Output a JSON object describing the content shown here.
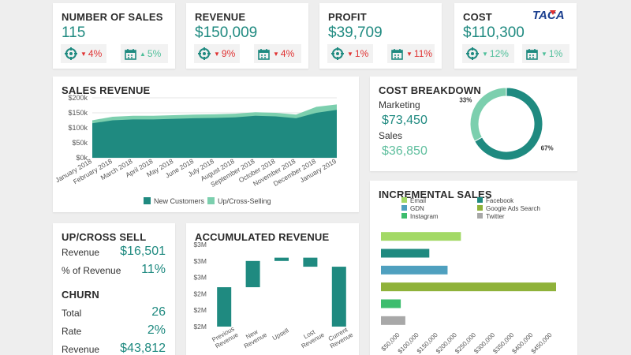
{
  "logo": {
    "text": "TACA",
    "colors": [
      "#1b3f8f",
      "#e03131"
    ]
  },
  "kpis": [
    {
      "title": "NUMBER OF SALES",
      "value": "115",
      "chip1": {
        "icon": "target-icon",
        "dir": "down",
        "pct": "4%"
      },
      "chip2": {
        "icon": "calendar-icon",
        "dir": "up",
        "pct": "5%"
      }
    },
    {
      "title": "REVENUE",
      "value": "$150,009",
      "chip1": {
        "icon": "target-icon",
        "dir": "down",
        "pct": "9%"
      },
      "chip2": {
        "icon": "calendar-icon",
        "dir": "down",
        "pct": "4%"
      }
    },
    {
      "title": "PROFIT",
      "value": "$39,709",
      "chip1": {
        "icon": "target-icon",
        "dir": "down",
        "pct": "1%"
      },
      "chip2": {
        "icon": "calendar-icon",
        "dir": "down",
        "pct": "11%"
      }
    },
    {
      "title": "COST",
      "value": "$110,300",
      "chip1": {
        "icon": "target-icon",
        "dir": "down",
        "pct": "12%",
        "good": true
      },
      "chip2": {
        "icon": "calendar-icon",
        "dir": "down",
        "pct": "1%",
        "good": true
      }
    }
  ],
  "sales_revenue": {
    "title": "SALES REVENUE",
    "chart_data": {
      "type": "area",
      "categories": [
        "January 2018",
        "February 2018",
        "March 2018",
        "April 2018",
        "May 2018",
        "June 2018",
        "July 2018",
        "August 2018",
        "September 2018",
        "October 2018",
        "November 2018",
        "December 2018",
        "January 2019"
      ],
      "series": [
        {
          "name": "New Customers",
          "values": [
            115,
            125,
            128,
            128,
            130,
            132,
            133,
            135,
            140,
            138,
            132,
            150,
            160
          ],
          "color": "#1f8a80"
        },
        {
          "name": "Up/Cross-Selling",
          "values": [
            10,
            12,
            12,
            12,
            12,
            12,
            12,
            12,
            12,
            12,
            12,
            20,
            18
          ],
          "color": "#7ccfae"
        }
      ],
      "stacked": true,
      "ylim": [
        0,
        200
      ],
      "yticks": [
        0,
        50,
        100,
        150,
        200
      ],
      "ytick_labels": [
        "$0k",
        "$50k",
        "$100k",
        "$150k",
        "$200k"
      ],
      "legend": "bottom"
    }
  },
  "cost_breakdown": {
    "title": "COST BREAKDOWN",
    "items": [
      {
        "label": "Marketing",
        "value": "$73,450",
        "color": "#1f8a80"
      },
      {
        "label": "Sales",
        "value": "$36,850",
        "color": "#7ccfae"
      }
    ],
    "chart_data": {
      "type": "pie",
      "labels": [
        "Marketing",
        "Sales"
      ],
      "values": [
        67,
        33
      ],
      "value_labels": [
        "67%",
        "33%"
      ],
      "colors": [
        "#1f8a80",
        "#7ccfae"
      ]
    }
  },
  "upcross": {
    "title": "UP/CROSS SELL",
    "rows": [
      {
        "label": "Revenue",
        "value": "$16,501"
      },
      {
        "label": "% of Revenue",
        "value": "11%"
      }
    ]
  },
  "churn": {
    "title": "CHURN",
    "rows": [
      {
        "label": "Total",
        "value": "26"
      },
      {
        "label": "Rate",
        "value": "2%"
      },
      {
        "label": "Revenue",
        "value": "$43,812"
      }
    ]
  },
  "accumulated": {
    "title": "ACCUMULATED REVENUE",
    "chart_data": {
      "type": "bar",
      "subtype": "waterfall",
      "categories": [
        "Previous Revenue",
        "New Revenue",
        "Upsell",
        "Lost Revenue",
        "Current Revenue"
      ],
      "starts": [
        2.0,
        2.48,
        2.8,
        2.84,
        2.0
      ],
      "ends": [
        2.48,
        2.8,
        2.84,
        2.73,
        2.73
      ],
      "color": "#1f8a80",
      "ylim": [
        2.0,
        3.0
      ],
      "yticks": [
        2.0,
        2.2,
        2.4,
        2.6,
        2.8,
        3.0
      ],
      "ytick_labels": [
        "$2M",
        "$2M",
        "$2M",
        "$3M",
        "$3M",
        "$3M"
      ]
    }
  },
  "incremental": {
    "title": "INCREMENTAL SALES",
    "chart_data": {
      "type": "bar",
      "orientation": "horizontal",
      "categories": [
        "Email",
        "Facebook",
        "GDN",
        "Google Ads Search",
        "Instagram",
        "Twitter"
      ],
      "values": [
        210000,
        127000,
        175000,
        460000,
        52000,
        64000
      ],
      "colors": [
        "#a3d966",
        "#1f8a80",
        "#4fa0bf",
        "#8fb23a",
        "#3dbd6e",
        "#a8a8a8"
      ],
      "xlim": [
        0,
        460000
      ],
      "xticks": [
        50000,
        100000,
        150000,
        200000,
        250000,
        300000,
        350000,
        400000,
        450000
      ],
      "xtick_labels": [
        "$50,000",
        "$100,000",
        "$150,000",
        "$200,000",
        "$250,000",
        "$300,000",
        "$350,000",
        "$400,000",
        "$450,000"
      ],
      "legend": "top"
    }
  }
}
